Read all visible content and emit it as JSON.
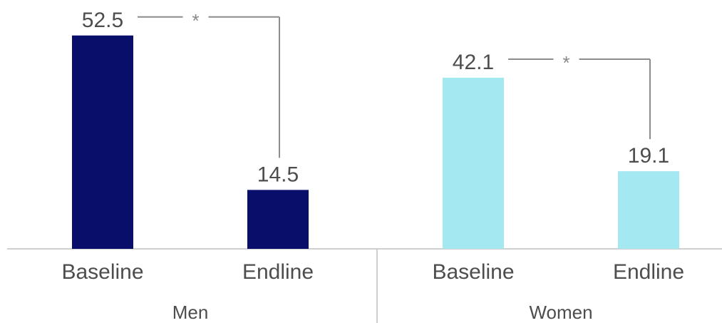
{
  "chart_data": {
    "type": "bar",
    "groups": [
      {
        "name": "Men",
        "color": "#0a0e6b",
        "bars": [
          {
            "category": "Baseline",
            "value": 52.5,
            "label": "52.5"
          },
          {
            "category": "Endline",
            "value": 14.5,
            "label": "14.5"
          }
        ],
        "significance": "*"
      },
      {
        "name": "Women",
        "color": "#a4e8f1",
        "bars": [
          {
            "category": "Baseline",
            "value": 42.1,
            "label": "42.1"
          },
          {
            "category": "Endline",
            "value": 19.1,
            "label": "19.1"
          }
        ],
        "significance": "*"
      }
    ],
    "ylim": [
      0,
      60
    ],
    "grid": false,
    "colors": {
      "axis": "#bfbfbf",
      "bracket": "#8c8c8c",
      "text": "#4d4d4d"
    }
  }
}
